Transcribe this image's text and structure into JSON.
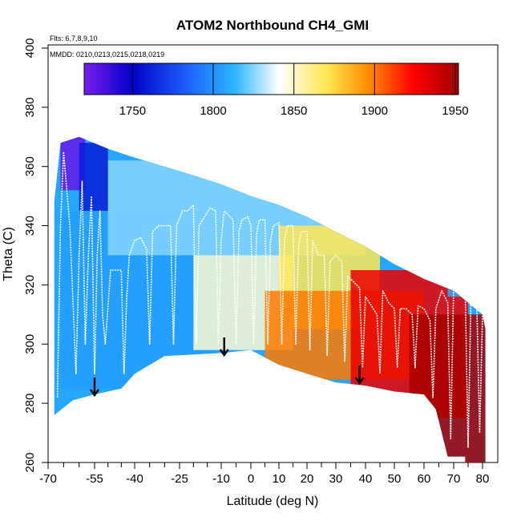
{
  "chart_data": {
    "type": "heatmap",
    "title": "ATOM2 Northbound CH4_GMI",
    "flights_note": "Flts: 6,7,8,9,10",
    "dates_note": "MMDD: 0210,0213,0215,0218,0219",
    "xlabel": "Latitude (deg N)",
    "ylabel": "Theta (C)",
    "xlim": [
      -70,
      82
    ],
    "ylim": [
      260,
      405
    ],
    "x_tick_labels": [
      "-70",
      "-55",
      "-40",
      "-25",
      "-10",
      "0",
      "10",
      "20",
      "30",
      "40",
      "50",
      "60",
      "70",
      "80"
    ],
    "x_tick_values": [
      -70,
      -55,
      -40,
      -25,
      -10,
      0,
      10,
      20,
      30,
      40,
      50,
      60,
      70,
      80
    ],
    "y_ticks": [
      260,
      280,
      300,
      320,
      340,
      360,
      380,
      400
    ],
    "colorbar": {
      "range": [
        1720,
        1952
      ],
      "tick_values": [
        1750,
        1800,
        1850,
        1900,
        1950
      ],
      "tick_labels": [
        "1750",
        "1800",
        "1850",
        "1900",
        "1950"
      ],
      "colors": [
        "#7a1cf0",
        "#0000c8",
        "#1e64ff",
        "#28b4ff",
        "#ffffff",
        "#ffe650",
        "#ff8c00",
        "#ff0000",
        "#a00000"
      ]
    },
    "curtain": {
      "top_boundary": [
        [
          -68,
          348
        ],
        [
          -66,
          368
        ],
        [
          -60,
          370
        ],
        [
          -50,
          366
        ],
        [
          -40,
          363
        ],
        [
          -30,
          360
        ],
        [
          -20,
          357
        ],
        [
          -10,
          354
        ],
        [
          0,
          350
        ],
        [
          10,
          347
        ],
        [
          20,
          343
        ],
        [
          30,
          338
        ],
        [
          40,
          333
        ],
        [
          50,
          327
        ],
        [
          60,
          322
        ],
        [
          70,
          318
        ],
        [
          80,
          310
        ],
        [
          81,
          305
        ]
      ],
      "bottom_boundary": [
        [
          -68,
          276
        ],
        [
          -62,
          281
        ],
        [
          -55,
          283
        ],
        [
          -45,
          285
        ],
        [
          -40,
          290
        ],
        [
          -30,
          296
        ],
        [
          -10,
          297
        ],
        [
          0,
          298
        ],
        [
          10,
          293
        ],
        [
          20,
          290
        ],
        [
          30,
          287
        ],
        [
          40,
          286
        ],
        [
          50,
          284
        ],
        [
          60,
          283
        ],
        [
          64,
          278
        ],
        [
          68,
          262
        ],
        [
          74,
          262
        ],
        [
          74,
          260
        ],
        [
          81,
          260
        ]
      ],
      "regions": [
        {
          "label": "southern-upper-purple",
          "x": [
            -66,
            -58
          ],
          "ymin": 352,
          "ymax": 370,
          "value": 1725
        },
        {
          "label": "southern-dark-blue",
          "x": [
            -60,
            -50
          ],
          "ymin": 345,
          "ymax": 368,
          "value": 1760
        },
        {
          "label": "southern-tropics-blue",
          "x": [
            -66,
            -5
          ],
          "ymin": 285,
          "ymax": 345,
          "value": 1805
        },
        {
          "label": "upper-light-blue",
          "x": [
            -50,
            40
          ],
          "ymin": 330,
          "ymax": 362,
          "value": 1825
        },
        {
          "label": "tropics-white",
          "x": [
            -20,
            15
          ],
          "ymin": 298,
          "ymax": 330,
          "value": 1848
        },
        {
          "label": "northern-yellow",
          "x": [
            10,
            45
          ],
          "ymin": 305,
          "ymax": 340,
          "value": 1870
        },
        {
          "label": "northern-orange",
          "x": [
            5,
            60
          ],
          "ymin": 288,
          "ymax": 318,
          "value": 1900
        },
        {
          "label": "northern-red",
          "x": [
            35,
            75
          ],
          "ymin": 275,
          "ymax": 325,
          "value": 1930
        },
        {
          "label": "arctic-dark-red",
          "x": [
            55,
            81
          ],
          "ymin": 260,
          "ymax": 310,
          "value": 1950
        },
        {
          "label": "arctic-top-blue",
          "x": [
            68,
            81
          ],
          "ymin": 316,
          "ymax": 324,
          "value": 1810
        }
      ]
    },
    "profile_markers": [
      -55,
      -9,
      38
    ],
    "flight_track": [
      [
        -67,
        282
      ],
      [
        -66,
        340
      ],
      [
        -65,
        365
      ],
      [
        -63,
        340
      ],
      [
        -61,
        290
      ],
      [
        -60,
        330
      ],
      [
        -59,
        355
      ],
      [
        -58,
        300
      ],
      [
        -57,
        330
      ],
      [
        -56,
        350
      ],
      [
        -55,
        290
      ],
      [
        -54,
        330
      ],
      [
        -53,
        345
      ],
      [
        -52,
        310
      ],
      [
        -51,
        300
      ],
      [
        -49,
        325
      ],
      [
        -47,
        325
      ],
      [
        -45,
        325
      ],
      [
        -44,
        290
      ],
      [
        -43,
        315
      ],
      [
        -42,
        330
      ],
      [
        -40,
        335
      ],
      [
        -38,
        336
      ],
      [
        -36,
        332
      ],
      [
        -35,
        300
      ],
      [
        -34,
        338
      ],
      [
        -32,
        340
      ],
      [
        -30,
        340
      ],
      [
        -28,
        340
      ],
      [
        -27,
        300
      ],
      [
        -26,
        340
      ],
      [
        -24,
        345
      ],
      [
        -22,
        345
      ],
      [
        -20,
        347
      ],
      [
        -19,
        300
      ],
      [
        -18,
        340
      ],
      [
        -16,
        343
      ],
      [
        -14,
        346
      ],
      [
        -12,
        345
      ],
      [
        -11,
        300
      ],
      [
        -10,
        335
      ],
      [
        -9,
        345
      ],
      [
        -8,
        344
      ],
      [
        -6,
        342
      ],
      [
        -5,
        300
      ],
      [
        -4,
        338
      ],
      [
        -3,
        342
      ],
      [
        -1,
        343
      ],
      [
        0,
        340
      ],
      [
        1,
        300
      ],
      [
        2,
        337
      ],
      [
        3,
        342
      ],
      [
        5,
        342
      ],
      [
        6,
        300
      ],
      [
        7,
        335
      ],
      [
        8,
        340
      ],
      [
        10,
        341
      ],
      [
        11,
        300
      ],
      [
        12,
        335
      ],
      [
        13,
        340
      ],
      [
        15,
        340
      ],
      [
        16,
        300
      ],
      [
        17,
        333
      ],
      [
        18,
        338
      ],
      [
        20,
        338
      ],
      [
        21,
        298
      ],
      [
        22,
        335
      ],
      [
        24,
        330
      ],
      [
        26,
        330
      ],
      [
        27,
        296
      ],
      [
        28,
        328
      ],
      [
        30,
        330
      ],
      [
        32,
        328
      ],
      [
        33,
        294
      ],
      [
        34,
        323
      ],
      [
        36,
        321
      ],
      [
        38,
        319
      ],
      [
        39,
        292
      ],
      [
        40,
        316
      ],
      [
        42,
        313
      ],
      [
        44,
        310
      ],
      [
        45,
        290
      ],
      [
        46,
        318
      ],
      [
        48,
        314
      ],
      [
        50,
        312
      ],
      [
        51,
        292
      ],
      [
        52,
        312
      ],
      [
        54,
        312
      ],
      [
        56,
        310
      ],
      [
        57,
        292
      ],
      [
        58,
        313
      ],
      [
        60,
        312
      ],
      [
        62,
        308
      ],
      [
        63,
        282
      ],
      [
        64,
        312
      ],
      [
        66,
        318
      ],
      [
        68,
        314
      ],
      [
        69,
        268
      ],
      [
        70,
        320
      ],
      [
        72,
        322
      ],
      [
        74,
        318
      ],
      [
        75,
        265
      ],
      [
        76,
        316
      ],
      [
        78,
        314
      ],
      [
        79,
        270
      ],
      [
        80,
        310
      ]
    ]
  }
}
